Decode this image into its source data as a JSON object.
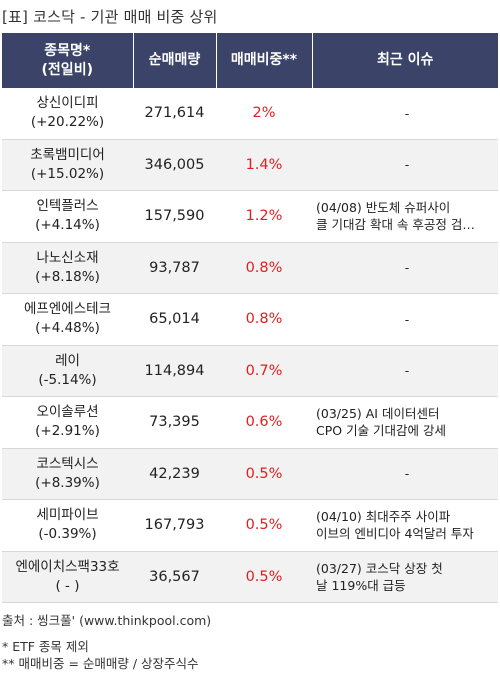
{
  "title": "[표] 코스닥 - 기관 매매 비중 상위",
  "headers": {
    "name_line1": "종목명*",
    "name_line2": "(전일비)",
    "qty": "순매매량",
    "ratio": "매매비중**",
    "issue": "최근 이슈"
  },
  "rows": [
    {
      "name": "상신이디피",
      "change": "(+20.22%)",
      "qty": "271,614",
      "ratio": "2%",
      "issue_line1": "-",
      "issue_line2": ""
    },
    {
      "name": "초록뱀미디어",
      "change": "(+15.02%)",
      "qty": "346,005",
      "ratio": "1.4%",
      "issue_line1": "-",
      "issue_line2": ""
    },
    {
      "name": "인텍플러스",
      "change": "(+4.14%)",
      "qty": "157,590",
      "ratio": "1.2%",
      "issue_line1": "(04/08) 반도체 슈퍼사이",
      "issue_line2": "클 기대감 확대 속 후공정 검…"
    },
    {
      "name": "나노신소재",
      "change": "(+8.18%)",
      "qty": "93,787",
      "ratio": "0.8%",
      "issue_line1": "-",
      "issue_line2": ""
    },
    {
      "name": "에프엔에스테크",
      "change": "(+4.48%)",
      "qty": "65,014",
      "ratio": "0.8%",
      "issue_line1": "-",
      "issue_line2": ""
    },
    {
      "name": "레이",
      "change": "(-5.14%)",
      "qty": "114,894",
      "ratio": "0.7%",
      "issue_line1": "-",
      "issue_line2": ""
    },
    {
      "name": "오이솔루션",
      "change": "(+2.91%)",
      "qty": "73,395",
      "ratio": "0.6%",
      "issue_line1": "(03/25) AI 데이터센터",
      "issue_line2": " CPO 기술 기대감에 강세"
    },
    {
      "name": "코스텍시스",
      "change": "(+8.39%)",
      "qty": "42,239",
      "ratio": "0.5%",
      "issue_line1": "-",
      "issue_line2": ""
    },
    {
      "name": "세미파이브",
      "change": "(-0.39%)",
      "qty": "167,793",
      "ratio": "0.5%",
      "issue_line1": "(04/10) 최대주주 사이파",
      "issue_line2": "이브의 엔비디아 4억달러 투자"
    },
    {
      "name": "엔에이치스팩33호",
      "change": "( - )",
      "qty": "36,567",
      "ratio": "0.5%",
      "issue_line1": "(03/27) 코스닥 상장 첫",
      "issue_line2": "날 119%대 급등"
    }
  ],
  "footer": {
    "source": "출처 : 씽크풀' (www.thinkpool.com)",
    "note1": "* ETF 종목 제외",
    "note2": "** 매매비중 = 순매매량 / 상장주식수"
  }
}
